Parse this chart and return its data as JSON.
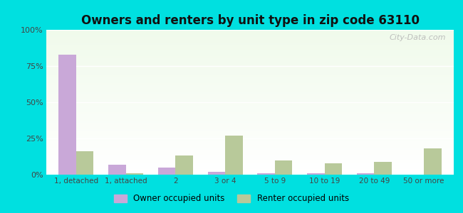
{
  "title": "Owners and renters by unit type in zip code 63110",
  "categories": [
    "1, detached",
    "1, attached",
    "2",
    "3 or 4",
    "5 to 9",
    "10 to 19",
    "20 to 49",
    "50 or more"
  ],
  "owner_values": [
    83,
    7,
    5,
    2,
    1,
    1,
    1,
    0
  ],
  "renter_values": [
    16,
    1,
    13,
    27,
    10,
    8,
    9,
    18
  ],
  "owner_color": "#c9a8d8",
  "renter_color": "#b8c99a",
  "background_outer": "#00e0e0",
  "ylim": [
    0,
    100
  ],
  "yticks": [
    0,
    25,
    50,
    75,
    100
  ],
  "ytick_labels": [
    "0%",
    "25%",
    "50%",
    "75%",
    "100%"
  ],
  "legend_owner": "Owner occupied units",
  "legend_renter": "Renter occupied units",
  "bar_width": 0.35,
  "title_fontsize": 12,
  "watermark": "City-Data.com"
}
